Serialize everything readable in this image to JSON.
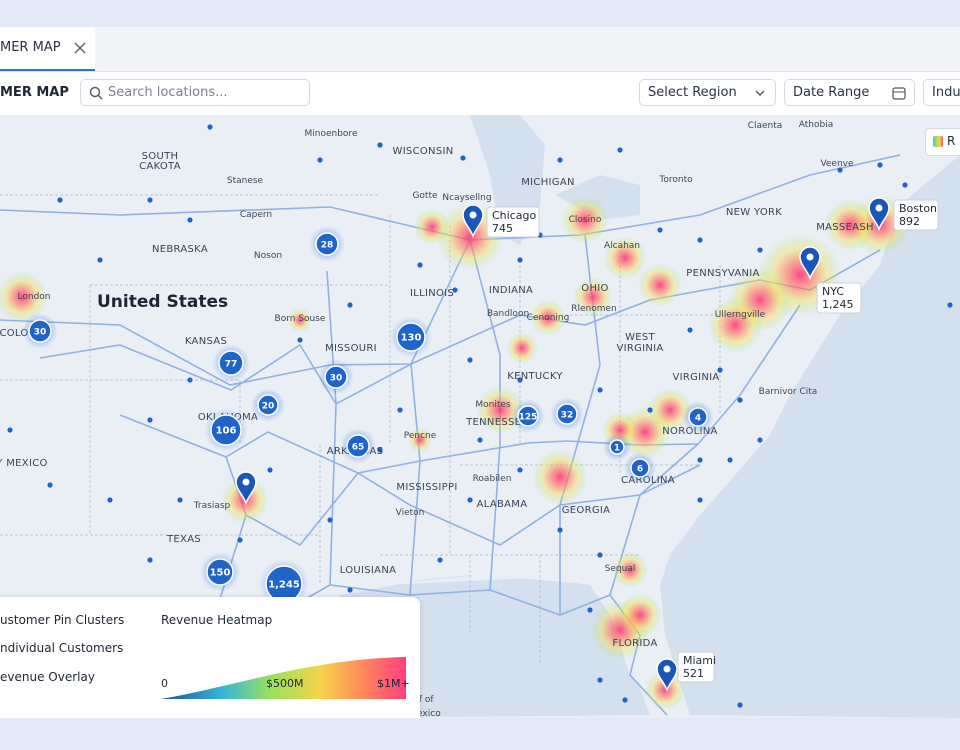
{
  "tab": {
    "label": "MER MAP"
  },
  "toolbar": {
    "title": "MER MAP",
    "search_placeholder": "Search locations...",
    "filters": [
      "Select Region",
      "Date Range",
      "Indus"
    ]
  },
  "layer_chip": "R",
  "map": {
    "country_label": "United States",
    "states": [
      "SOUTH",
      "CAKOTA",
      "WISCONSIN",
      "MICHIGAN",
      "NEW YORK",
      "MASSEASH",
      "NEBRASKA",
      "ILLINOIS",
      "INDIANA",
      "OHIO",
      "PENNSYVANIA",
      "KANSAS",
      "MISSOURI",
      "KENTUCKY",
      "WEST",
      "VIRGINIA",
      "VIRGINIA",
      "TENNESSEE",
      "NOROLINA",
      "CAROLINA",
      "OKLAHOMA",
      "ARKANSAS",
      "MISSISSIPPI",
      "ALABAMA",
      "GEORGIA",
      "TEXAS",
      "LOUISIANA",
      "FLORIDA",
      "COLO",
      "Y MEXICO"
    ],
    "places": [
      "Minoenbore",
      "Stanese",
      "Capern",
      "Noson",
      "Born Souse",
      "Gotte",
      "Ncaysellng",
      "Closino",
      "Toronto",
      "Claenta",
      "Athobia",
      "Veenve",
      "Alcahan",
      "Rlenomen",
      "Cenoning",
      "Bandloon",
      "Pencne",
      "Monites",
      "Roabilen",
      "Trasiasp",
      "Vieton",
      "Barnivor Cita",
      "London",
      "Ullerngville",
      "Sequal",
      "lf of",
      "Mexico"
    ],
    "clusters": [
      "28",
      "30",
      "77",
      "130",
      "30",
      "20",
      "106",
      "65",
      "150",
      "1,245",
      "125",
      "32",
      "4",
      "6",
      "1"
    ],
    "callouts": [
      {
        "name": "Chicago",
        "count": "745"
      },
      {
        "name": "Boston",
        "count": "892"
      },
      {
        "name": "NYC",
        "count": "1,245"
      },
      {
        "name": "Miami",
        "count": "521"
      }
    ]
  },
  "legend": {
    "items": [
      "ustomer Pin Clusters",
      "ndividual Customers",
      "evenue Overlay"
    ],
    "heatmap": {
      "title": "Revenue Heatmap",
      "ticks": [
        "0",
        "$500M",
        "$1M+"
      ]
    }
  }
}
